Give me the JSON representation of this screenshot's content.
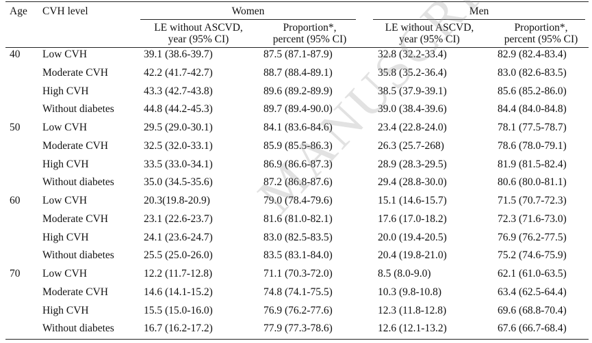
{
  "header": {
    "age": "Age",
    "cvh": "CVH level",
    "women": "Women",
    "men": "Men",
    "le_line1": "LE without ASCVD,",
    "le_line2": "year (95% CI)",
    "prop_line1": "Proportion*,",
    "prop_line2": "percent (95% CI)"
  },
  "groups": [
    {
      "age": "40",
      "rows": [
        {
          "level": "Low CVH",
          "w_le": "39.1 (38.6-39.7)",
          "w_prop": "87.5 (87.1-87.9)",
          "m_le": "32.8 (32.2-33.4)",
          "m_prop": "82.9 (82.4-83.4)"
        },
        {
          "level": "Moderate CVH",
          "w_le": "42.2 (41.7-42.7)",
          "w_prop": "88.7 (88.4-89.1)",
          "m_le": "35.8 (35.2-36.4)",
          "m_prop": "83.0 (82.6-83.5)"
        },
        {
          "level": "High CVH",
          "w_le": "43.3 (42.7-43.8)",
          "w_prop": "89.6 (89.2-89.9)",
          "m_le": "38.5 (37.9-39.1)",
          "m_prop": "85.6 (85.2-86.0)"
        },
        {
          "level": "Without diabetes",
          "w_le": "44.8 (44.2-45.3)",
          "w_prop": "89.7 (89.4-90.0)",
          "m_le": "39.0 (38.4-39.6)",
          "m_prop": "84.4 (84.0-84.8)"
        }
      ]
    },
    {
      "age": "50",
      "rows": [
        {
          "level": "Low CVH",
          "w_le": "29.5 (29.0-30.1)",
          "w_prop": "84.1 (83.6-84.6)",
          "m_le": "23.4 (22.8-24.0)",
          "m_prop": "78.1 (77.5-78.7)"
        },
        {
          "level": "Moderate CVH",
          "w_le": "32.5 (32.0-33.1)",
          "w_prop": "85.9 (85.5-86.3)",
          "m_le": "26.3 (25.7-268)",
          "m_prop": "78.6 (78.0-79.1)"
        },
        {
          "level": "High CVH",
          "w_le": "33.5 (33.0-34.1)",
          "w_prop": "86.9 (86.6-87.3)",
          "m_le": "28.9 (28.3-29.5)",
          "m_prop": "81.9 (81.5-82.4)"
        },
        {
          "level": "Without diabetes",
          "w_le": "35.0 (34.5-35.6)",
          "w_prop": "87.2 (86.8-87.6)",
          "m_le": "29.4 (28.8-30.0)",
          "m_prop": "80.6 (80.0-81.1)"
        }
      ]
    },
    {
      "age": "60",
      "rows": [
        {
          "level": "Low CVH",
          "w_le": "20.3(19.8-20.9)",
          "w_prop": "79.0 (78.4-79.6)",
          "m_le": "15.1 (14.6-15.7)",
          "m_prop": "71.5 (70.7-72.3)"
        },
        {
          "level": "Moderate CVH",
          "w_le": "23.1 (22.6-23.7)",
          "w_prop": "81.6 (81.0-82.1)",
          "m_le": "17.6 (17.0-18.2)",
          "m_prop": "72.3 (71.6-73.0)"
        },
        {
          "level": "High CVH",
          "w_le": "24.1 (23.6-24.7)",
          "w_prop": "83.0 (82.5-83.5)",
          "m_le": "20.0 (19.4-20.5)",
          "m_prop": "76.9 (76.2-77.5)"
        },
        {
          "level": "Without diabetes",
          "w_le": "25.5 (25.0-26.0)",
          "w_prop": "83.5 (83.1-84.0)",
          "m_le": "20.4 (19.8-21.0)",
          "m_prop": "75.2 (74.6-75.9)"
        }
      ]
    },
    {
      "age": "70",
      "rows": [
        {
          "level": "Low CVH",
          "w_le": "12.2 (11.7-12.8)",
          "w_prop": "71.1 (70.3-72.0)",
          "m_le": "8.5 (8.0-9.0)",
          "m_prop": "62.1 (61.0-63.5)"
        },
        {
          "level": "Moderate CVH",
          "w_le": "14.6 (14.1-15.2)",
          "w_prop": "74.8 (74.1-75.5)",
          "m_le": "10.3 (9.8-10.8)",
          "m_prop": "63.4 (62.5-64.4)"
        },
        {
          "level": "High CVH",
          "w_le": "15.5 (15.0-16.0)",
          "w_prop": "76.9 (76.2-77.6)",
          "m_le": "12.3 (11.8-12.8)",
          "m_prop": "69.6 (68.8-70.4)"
        },
        {
          "level": "Without diabetes",
          "w_le": "16.7 (16.2-17.2)",
          "w_prop": "77.9 (77.3-78.6)",
          "m_le": "12.6 (12.1-13.2)",
          "m_prop": "67.6 (66.7-68.4)"
        }
      ]
    }
  ],
  "watermark": "MANUSCRIPT"
}
